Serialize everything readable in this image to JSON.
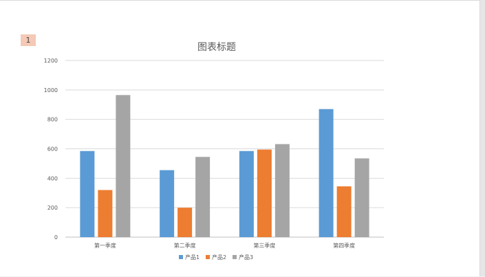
{
  "slide": {
    "number": "1"
  },
  "chart_data": {
    "type": "bar",
    "title": "图表标题",
    "categories": [
      "第一季度",
      "第二季度",
      "第三季度",
      "第四季度"
    ],
    "series": [
      {
        "name": "产品1",
        "color": "#5b9bd5",
        "values": [
          585,
          455,
          585,
          870
        ]
      },
      {
        "name": "产品2",
        "color": "#ed7d31",
        "values": [
          320,
          200,
          595,
          345
        ]
      },
      {
        "name": "产品3",
        "color": "#a5a5a5",
        "values": [
          965,
          545,
          632,
          535
        ]
      }
    ],
    "ylim": [
      0,
      1200
    ],
    "yticks": [
      "0",
      "200",
      "400",
      "600",
      "800",
      "1000",
      "1200"
    ],
    "grid": true,
    "legend_position": "bottom"
  }
}
